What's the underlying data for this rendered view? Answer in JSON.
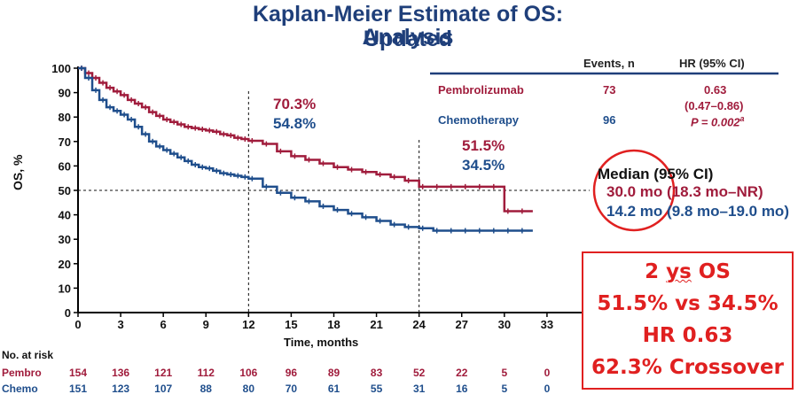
{
  "title_line1": "Kaplan-Meier Estimate of OS: Updated",
  "title_line2": "Analysis",
  "chart_data": {
    "type": "line",
    "ylabel": "OS, %",
    "xlabel": "Time, months",
    "xlim": [
      0,
      36
    ],
    "ylim": [
      0,
      100
    ],
    "x_ticks": [
      0,
      3,
      6,
      9,
      12,
      15,
      18,
      21,
      24,
      27,
      30,
      33
    ],
    "y_ticks": [
      0,
      10,
      20,
      30,
      40,
      50,
      60,
      70,
      80,
      90,
      100
    ],
    "step": true,
    "series": [
      {
        "name": "Pembrolizumab",
        "color": "#a01c3c",
        "x": [
          0,
          0.5,
          1,
          1.5,
          2,
          2.5,
          3,
          3.5,
          4,
          4.5,
          5,
          5.5,
          6,
          6.5,
          7,
          7.5,
          8,
          8.5,
          9,
          9.5,
          10,
          10.5,
          11,
          11.5,
          12,
          13,
          14,
          15,
          16,
          17,
          18,
          19,
          20,
          21,
          22,
          23,
          24,
          25,
          26,
          27,
          28,
          29,
          30,
          31,
          32
        ],
        "y": [
          100,
          98,
          96,
          94,
          92,
          90.5,
          89,
          87,
          85.5,
          84,
          82,
          80.5,
          79,
          78,
          77,
          76,
          75.5,
          75,
          74.5,
          74,
          73,
          72.5,
          71.5,
          71,
          70.3,
          69,
          66,
          64,
          62.5,
          61,
          59.5,
          58.5,
          57.5,
          56.5,
          55.5,
          54,
          51.5,
          51.5,
          51.5,
          51.5,
          51.5,
          51.5,
          41.5,
          41.5,
          41.5
        ]
      },
      {
        "name": "Chemotherapy",
        "color": "#1f4e8c",
        "x": [
          0,
          0.5,
          1,
          1.5,
          2,
          2.5,
          3,
          3.5,
          4,
          4.5,
          5,
          5.5,
          6,
          6.5,
          7,
          7.5,
          8,
          8.5,
          9,
          9.5,
          10,
          10.5,
          11,
          11.5,
          12,
          13,
          14,
          15,
          16,
          17,
          18,
          19,
          20,
          21,
          22,
          23,
          24,
          25,
          26,
          27,
          28,
          29,
          30,
          31,
          32
        ],
        "y": [
          100,
          96,
          91,
          87,
          84,
          82.5,
          81,
          79,
          76,
          73,
          70,
          68,
          66.5,
          65,
          63.5,
          62,
          60.5,
          59.5,
          59,
          58,
          57,
          56.5,
          56,
          55.5,
          54.8,
          51.5,
          49,
          47,
          45.5,
          43.5,
          42,
          40.5,
          39,
          37.5,
          36,
          35,
          34.5,
          33.5,
          33.5,
          33.5,
          33.5,
          33.5,
          33.5,
          33.5,
          33.5
        ]
      }
    ],
    "reference_lines": {
      "y": 50,
      "x": [
        12,
        24
      ]
    },
    "annotations": [
      {
        "x": 12,
        "red": "70.3%",
        "blue": "54.8%"
      },
      {
        "x": 24,
        "red": "51.5%",
        "blue": "34.5%"
      }
    ],
    "table": {
      "headers": [
        "Events, n",
        "HR (95% CI)"
      ],
      "rows": [
        {
          "label": "Pembrolizumab",
          "events": "73",
          "hr": "0.63",
          "ci": "(0.47–0.86)",
          "p": "P = 0.002",
          "p_sup": "a"
        },
        {
          "label": "Chemotherapy",
          "events": "96"
        }
      ]
    },
    "median": {
      "header": "Median (95% CI)",
      "pembro": "30.0 mo (18.3 mo–NR)",
      "chemo": "14.2 mo (9.8 mo–19.0 mo)"
    },
    "at_risk": {
      "label": "No. at risk",
      "rows": [
        {
          "name": "Pembro",
          "values": [
            "154",
            "136",
            "121",
            "112",
            "106",
            "96",
            "89",
            "83",
            "52",
            "22",
            "5",
            "0"
          ]
        },
        {
          "name": "Chemo",
          "values": [
            "151",
            "123",
            "107",
            "88",
            "80",
            "70",
            "61",
            "55",
            "31",
            "16",
            "5",
            "0"
          ]
        }
      ]
    }
  },
  "note": {
    "line1_a": "2 ",
    "line1_b": "ys",
    "line1_c": " OS",
    "line2": "51.5% vs 34.5%",
    "line3": "HR 0.63",
    "line4": "62.3% Crossover"
  }
}
